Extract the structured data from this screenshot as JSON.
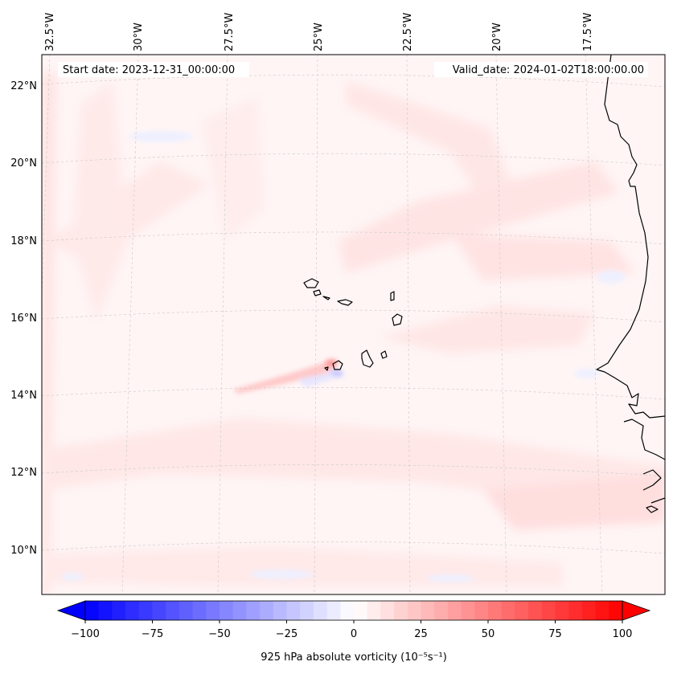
{
  "map": {
    "start_label": "Start date: 2023-12-31_00:00:00",
    "valid_label": "Valid_date: 2024-01-02T18:00:00.00",
    "lon_labels": [
      "32.5°W",
      "30°W",
      "27.5°W",
      "25°W",
      "22.5°W",
      "20°W",
      "17.5°W"
    ],
    "lat_labels": [
      "22°N",
      "20°N",
      "18°N",
      "16°N",
      "14°N",
      "12°N",
      "10°N"
    ],
    "extent": {
      "lon_min": -33.0,
      "lon_max": -16.2,
      "lat_min": 8.8,
      "lat_max": 22.8
    },
    "field_background_color": "#fff5f5",
    "coastline_color": "#000000",
    "gridline_color": "#c8c8c8"
  },
  "colorbar": {
    "ticks": [
      "−100",
      "−75",
      "−50",
      "−25",
      "0",
      "25",
      "50",
      "75",
      "100"
    ],
    "label": "925 hPa absolute vorticity (10⁻⁵s⁻¹)",
    "min": -100,
    "max": 100,
    "step": 5,
    "colormap": "bwr",
    "extend": "both"
  }
}
